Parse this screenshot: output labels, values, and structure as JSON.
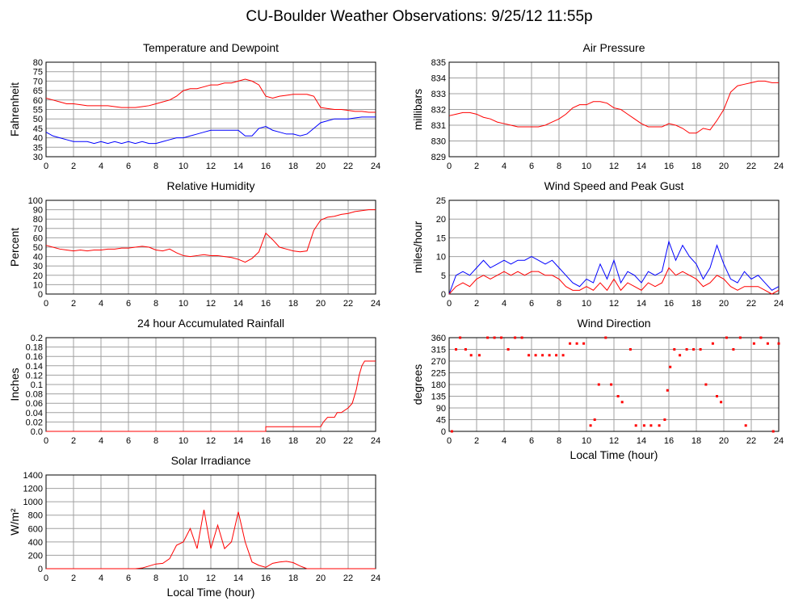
{
  "title": "CU-Boulder Weather Observations: 9/25/12 11:55p",
  "chart_data": [
    {
      "type": "line",
      "title": "Temperature and Dewpoint",
      "ylabel": "Fahrenheit",
      "x": [
        0,
        0.5,
        1,
        1.5,
        2,
        2.5,
        3,
        3.5,
        4,
        4.5,
        5,
        5.5,
        6,
        6.5,
        7,
        7.5,
        8,
        8.5,
        9,
        9.5,
        10,
        10.5,
        11,
        11.5,
        12,
        12.5,
        13,
        13.5,
        14,
        14.5,
        15,
        15.5,
        16,
        16.5,
        17,
        17.5,
        18,
        18.5,
        19,
        19.5,
        20,
        20.5,
        21,
        21.5,
        22,
        22.5,
        23,
        23.5,
        24
      ],
      "series": [
        {
          "color": "#ff0000",
          "values": [
            61,
            60,
            59,
            58,
            58,
            57.5,
            57,
            57,
            57,
            57,
            56.5,
            56,
            56,
            56,
            56.5,
            57,
            58,
            59,
            60,
            62,
            65,
            66,
            66,
            67,
            68,
            68,
            69,
            69,
            70,
            71,
            70,
            68,
            62,
            61,
            62,
            62.5,
            63,
            63,
            63,
            62,
            56,
            55.5,
            55,
            55,
            54.5,
            54,
            54,
            53.5,
            53.5
          ]
        },
        {
          "color": "#0000ff",
          "values": [
            43,
            41,
            40,
            39,
            38,
            38,
            38,
            37,
            38,
            37,
            38,
            37,
            38,
            37,
            38,
            37,
            37,
            38,
            39,
            40,
            40,
            41,
            42,
            43,
            44,
            44,
            44,
            44,
            44,
            41,
            41,
            45,
            46,
            44,
            43,
            42,
            42,
            41,
            42,
            45,
            48,
            49,
            50,
            50,
            50,
            50.5,
            51,
            51,
            51
          ]
        }
      ],
      "xlim": [
        0,
        24
      ],
      "ylim": [
        30,
        80
      ],
      "xticks": [
        0,
        2,
        4,
        6,
        8,
        10,
        12,
        14,
        16,
        18,
        20,
        22,
        24
      ],
      "yticks": [
        30,
        35,
        40,
        45,
        50,
        55,
        60,
        65,
        70,
        75,
        80
      ],
      "grid": true
    },
    {
      "type": "line",
      "title": "Air Pressure",
      "ylabel": "millibars",
      "x": [
        0,
        0.5,
        1,
        1.5,
        2,
        2.5,
        3,
        3.5,
        4,
        4.5,
        5,
        5.5,
        6,
        6.5,
        7,
        7.5,
        8,
        8.5,
        9,
        9.5,
        10,
        10.5,
        11,
        11.5,
        12,
        12.5,
        13,
        13.5,
        14,
        14.5,
        15,
        15.5,
        16,
        16.5,
        17,
        17.5,
        18,
        18.5,
        19,
        19.5,
        20,
        20.5,
        21,
        21.5,
        22,
        22.5,
        23,
        23.5,
        24
      ],
      "series": [
        {
          "color": "#ff0000",
          "values": [
            831.6,
            831.7,
            831.8,
            831.8,
            831.7,
            831.5,
            831.4,
            831.2,
            831.1,
            831.0,
            830.9,
            830.9,
            830.9,
            830.9,
            831.0,
            831.2,
            831.4,
            831.7,
            832.1,
            832.3,
            832.3,
            832.5,
            832.5,
            832.4,
            832.1,
            832.0,
            831.7,
            831.4,
            831.1,
            830.9,
            830.9,
            830.9,
            831.1,
            831.0,
            830.8,
            830.5,
            830.5,
            830.8,
            830.7,
            831.3,
            832.0,
            833.1,
            833.5,
            833.6,
            833.7,
            833.8,
            833.8,
            833.7,
            833.7
          ]
        }
      ],
      "xlim": [
        0,
        24
      ],
      "ylim": [
        829,
        835
      ],
      "xticks": [
        0,
        2,
        4,
        6,
        8,
        10,
        12,
        14,
        16,
        18,
        20,
        22,
        24
      ],
      "yticks": [
        829,
        830,
        831,
        832,
        833,
        834,
        835
      ],
      "grid": true
    },
    {
      "type": "line",
      "title": "Relative Humidity",
      "ylabel": "Percent",
      "x": [
        0,
        0.5,
        1,
        1.5,
        2,
        2.5,
        3,
        3.5,
        4,
        4.5,
        5,
        5.5,
        6,
        6.5,
        7,
        7.5,
        8,
        8.5,
        9,
        9.5,
        10,
        10.5,
        11,
        11.5,
        12,
        12.5,
        13,
        13.5,
        14,
        14.5,
        15,
        15.5,
        16,
        16.5,
        17,
        17.5,
        18,
        18.5,
        19,
        19.5,
        20,
        20.5,
        21,
        21.5,
        22,
        22.5,
        23,
        23.5,
        24
      ],
      "series": [
        {
          "color": "#ff0000",
          "values": [
            52,
            50,
            48,
            47,
            46,
            47,
            46,
            47,
            47,
            48,
            48,
            49,
            49,
            50,
            51,
            50,
            47,
            46,
            48,
            44,
            41,
            40,
            41,
            42,
            41,
            41,
            40,
            39,
            37,
            34,
            38,
            45,
            65,
            58,
            50,
            48,
            46,
            45,
            46,
            68,
            79,
            82,
            83,
            85,
            86,
            88,
            89,
            90,
            90
          ]
        }
      ],
      "xlim": [
        0,
        24
      ],
      "ylim": [
        0,
        100
      ],
      "xticks": [
        0,
        2,
        4,
        6,
        8,
        10,
        12,
        14,
        16,
        18,
        20,
        22,
        24
      ],
      "yticks": [
        0,
        10,
        20,
        30,
        40,
        50,
        60,
        70,
        80,
        90,
        100
      ],
      "grid": true
    },
    {
      "type": "line",
      "title": "Wind Speed and Peak Gust",
      "ylabel": "miles/hour",
      "x": [
        0,
        0.5,
        1,
        1.5,
        2,
        2.5,
        3,
        3.5,
        4,
        4.5,
        5,
        5.5,
        6,
        6.5,
        7,
        7.5,
        8,
        8.5,
        9,
        9.5,
        10,
        10.5,
        11,
        11.5,
        12,
        12.5,
        13,
        13.5,
        14,
        14.5,
        15,
        15.5,
        16,
        16.5,
        17,
        17.5,
        18,
        18.5,
        19,
        19.5,
        20,
        20.5,
        21,
        21.5,
        22,
        22.5,
        23,
        23.5,
        24
      ],
      "series": [
        {
          "color": "#0000ff",
          "values": [
            0,
            5,
            6,
            5,
            7,
            9,
            7,
            8,
            9,
            8,
            9,
            9,
            10,
            9,
            8,
            9,
            7,
            5,
            3,
            2,
            4,
            3,
            8,
            4,
            9,
            3,
            6,
            5,
            3,
            6,
            5,
            6,
            14,
            9,
            13,
            10,
            8,
            4,
            7,
            13,
            8,
            4,
            3,
            6,
            4,
            5,
            3,
            1,
            2
          ]
        },
        {
          "color": "#ff0000",
          "values": [
            0,
            2,
            3,
            2,
            4,
            5,
            4,
            5,
            6,
            5,
            6,
            5,
            6,
            6,
            5,
            5,
            4,
            2,
            1,
            1,
            2,
            1,
            3,
            1,
            4,
            1,
            3,
            2,
            1,
            3,
            2,
            3,
            7,
            5,
            6,
            5,
            4,
            2,
            3,
            5,
            4,
            2,
            1,
            2,
            2,
            2,
            1,
            0,
            1
          ]
        }
      ],
      "xlim": [
        0,
        24
      ],
      "ylim": [
        0,
        25
      ],
      "xticks": [
        0,
        2,
        4,
        6,
        8,
        10,
        12,
        14,
        16,
        18,
        20,
        22,
        24
      ],
      "yticks": [
        0,
        5,
        10,
        15,
        20,
        25
      ],
      "grid": true
    },
    {
      "type": "line",
      "title": "24 hour Accumulated Rainfall",
      "ylabel": "Inches",
      "x": [
        0,
        16,
        16,
        20,
        20.2,
        20.5,
        21,
        21.2,
        21.5,
        22,
        22.3,
        22.6,
        22.8,
        23,
        23.2,
        23.5,
        24
      ],
      "series": [
        {
          "color": "#ff0000",
          "values": [
            0,
            0,
            0.01,
            0.01,
            0.02,
            0.03,
            0.03,
            0.04,
            0.04,
            0.05,
            0.06,
            0.09,
            0.12,
            0.14,
            0.15,
            0.15,
            0.15
          ]
        }
      ],
      "xlim": [
        0,
        24
      ],
      "ylim": [
        0,
        0.2
      ],
      "xticks": [
        0,
        2,
        4,
        6,
        8,
        10,
        12,
        14,
        16,
        18,
        20,
        22,
        24
      ],
      "yticks": [
        {
          "value": 0,
          "label": "0.0"
        },
        0.02,
        0.04,
        0.06,
        0.08,
        0.1,
        0.12,
        0.14,
        0.16,
        0.18,
        0.2
      ],
      "grid": true
    },
    {
      "type": "scatter",
      "title": "Wind Direction",
      "ylabel": "degrees",
      "xlabel": "Local Time (hour)",
      "x": [
        0.2,
        0.5,
        0.8,
        1.2,
        1.6,
        2.2,
        2.8,
        3.3,
        3.8,
        4.3,
        4.8,
        5.3,
        5.8,
        6.3,
        6.8,
        7.3,
        7.8,
        8.3,
        8.8,
        9.3,
        9.8,
        10.3,
        10.6,
        10.9,
        11.4,
        11.8,
        12.3,
        12.6,
        13.2,
        13.6,
        14.2,
        14.7,
        15.3,
        15.7,
        15.9,
        16.1,
        16.4,
        16.8,
        17.3,
        17.8,
        18.3,
        18.7,
        19.2,
        19.5,
        19.8,
        20.2,
        20.7,
        21.2,
        21.6,
        22.2,
        22.7,
        23.2,
        23.6,
        24
      ],
      "series": [
        {
          "color": "#ff0000",
          "values": [
            0,
            315,
            360,
            315,
            292.5,
            292.5,
            360,
            360,
            360,
            315,
            360,
            360,
            292.5,
            292.5,
            292.5,
            292.5,
            292.5,
            292.5,
            337.5,
            337.5,
            337.5,
            22.5,
            45,
            180,
            360,
            180,
            135,
            112.5,
            315,
            22.5,
            22.5,
            22.5,
            22.5,
            45,
            157.5,
            247.5,
            315,
            292.5,
            315,
            315,
            315,
            180,
            337.5,
            135,
            112.5,
            360,
            315,
            360,
            22.5,
            337.5,
            360,
            337.5,
            0,
            337.5
          ]
        }
      ],
      "xlim": [
        0,
        24
      ],
      "ylim": [
        0,
        360
      ],
      "xticks": [
        0,
        2,
        4,
        6,
        8,
        10,
        12,
        14,
        16,
        18,
        20,
        22,
        24
      ],
      "yticks": [
        0,
        45,
        90,
        135,
        180,
        225,
        270,
        315,
        360
      ],
      "grid": true
    },
    {
      "type": "line",
      "title": "Solar Irradiance",
      "ylabel": "W/m²",
      "xlabel": "Local Time (hour)",
      "x": [
        0,
        0.5,
        1,
        1.5,
        2,
        2.5,
        3,
        3.5,
        4,
        4.5,
        5,
        5.5,
        6,
        6.5,
        7,
        7.5,
        8,
        8.5,
        9,
        9.5,
        10,
        10.5,
        11,
        11.5,
        12,
        12.5,
        13,
        13.5,
        14,
        14.5,
        15,
        15.5,
        16,
        16.5,
        17,
        17.5,
        18,
        18.5,
        19,
        19.5,
        20,
        20.5,
        21,
        21.5,
        22,
        22.5,
        23,
        23.5,
        24
      ],
      "series": [
        {
          "color": "#ff0000",
          "values": [
            0,
            0,
            0,
            0,
            0,
            0,
            0,
            0,
            0,
            0,
            0,
            0,
            0,
            0,
            10,
            40,
            70,
            80,
            150,
            350,
            400,
            600,
            300,
            880,
            300,
            650,
            300,
            400,
            850,
            400,
            100,
            50,
            20,
            80,
            100,
            110,
            90,
            40,
            0,
            0,
            0,
            0,
            0,
            0,
            0,
            0,
            0,
            0,
            0
          ]
        }
      ],
      "xlim": [
        0,
        24
      ],
      "ylim": [
        0,
        1400
      ],
      "xticks": [
        0,
        2,
        4,
        6,
        8,
        10,
        12,
        14,
        16,
        18,
        20,
        22,
        24
      ],
      "yticks": [
        0,
        200,
        400,
        600,
        800,
        1000,
        1200,
        1400
      ],
      "grid": true
    }
  ]
}
